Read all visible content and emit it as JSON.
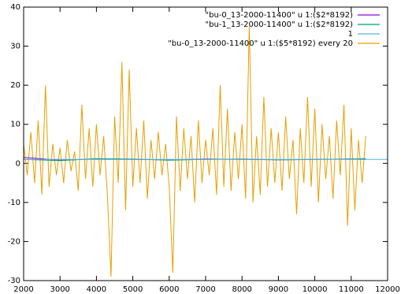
{
  "chart_data": {
    "type": "line",
    "xlim": [
      2000,
      12000
    ],
    "xticks": [
      2000,
      3000,
      4000,
      5000,
      6000,
      7000,
      8000,
      9000,
      10000,
      11000,
      12000
    ],
    "ylim": [
      -30,
      40
    ],
    "yticks": [
      -30,
      -20,
      -10,
      0,
      10,
      20,
      30,
      40
    ],
    "legend": "top-right",
    "series": [
      {
        "name": "\"bu-0_13-2000-11400\" u 1:($2*8192)",
        "color": "#9400d3",
        "x": [
          2000,
          3000,
          4000,
          5000,
          6000,
          7000,
          8000,
          9000,
          10000,
          11000,
          11400
        ],
        "values": [
          1.5,
          0.8,
          1.1,
          1.0,
          0.9,
          1.1,
          1.0,
          0.9,
          1.0,
          1.1,
          1.0
        ]
      },
      {
        "name": "\"bu-1_13-2000-11400\" u 1:($2*8192)",
        "color": "#009e73",
        "x": [
          2000,
          3000,
          4000,
          5000,
          6000,
          7000,
          8000,
          9000,
          10000,
          11000,
          11400
        ],
        "values": [
          1.0,
          0.7,
          1.2,
          1.1,
          0.8,
          1.0,
          1.1,
          0.9,
          1.0,
          1.1,
          1.2
        ]
      },
      {
        "name": "1",
        "color": "#56b4e9",
        "x": [
          2000,
          12000
        ],
        "values": [
          1,
          1
        ]
      },
      {
        "name": "\"bu-0_13-2000-11400\" u 1:($5*8192) every 20",
        "color": "#e69f00",
        "x": [
          2000,
          2100,
          2200,
          2300,
          2400,
          2500,
          2600,
          2700,
          2800,
          2900,
          3000,
          3100,
          3200,
          3300,
          3400,
          3500,
          3600,
          3700,
          3800,
          3900,
          4000,
          4100,
          4200,
          4300,
          4400,
          4500,
          4600,
          4700,
          4800,
          4900,
          5000,
          5100,
          5200,
          5300,
          5400,
          5500,
          5600,
          5700,
          5800,
          5900,
          6000,
          6100,
          6200,
          6300,
          6400,
          6500,
          6600,
          6700,
          6800,
          6900,
          7000,
          7100,
          7200,
          7300,
          7400,
          7500,
          7600,
          7700,
          7800,
          7900,
          8000,
          8100,
          8200,
          8300,
          8400,
          8500,
          8600,
          8700,
          8800,
          8900,
          9000,
          9100,
          9200,
          9300,
          9400,
          9500,
          9600,
          9700,
          9800,
          9900,
          10000,
          10100,
          10200,
          10300,
          10400,
          10500,
          10600,
          10700,
          10800,
          10900,
          11000,
          11100,
          11200,
          11300,
          11400
        ],
        "values": [
          5,
          -3,
          8,
          -5,
          11,
          -8,
          20,
          -6,
          5,
          -3,
          4,
          -5,
          6,
          -2,
          3,
          -7,
          15,
          -4,
          9,
          -6,
          10,
          -3,
          7,
          -8,
          -29,
          12,
          -5,
          26,
          -12,
          24,
          -6,
          9,
          -5,
          11,
          -9,
          6,
          -4,
          8,
          -3,
          5,
          -6,
          -28,
          12,
          -7,
          9,
          -4,
          7,
          -10,
          11,
          -5,
          6,
          -3,
          9,
          -8,
          20,
          -6,
          14,
          -7,
          8,
          -4,
          10,
          -9,
          35,
          -10,
          7,
          -8,
          17,
          -6,
          9,
          -5,
          8,
          -7,
          12,
          -4,
          6,
          -13,
          9,
          -5,
          17,
          -6,
          14,
          -10,
          10,
          -4,
          7,
          -9,
          11,
          -3,
          15,
          -16,
          9,
          -12,
          6,
          -5,
          7
        ]
      }
    ]
  }
}
